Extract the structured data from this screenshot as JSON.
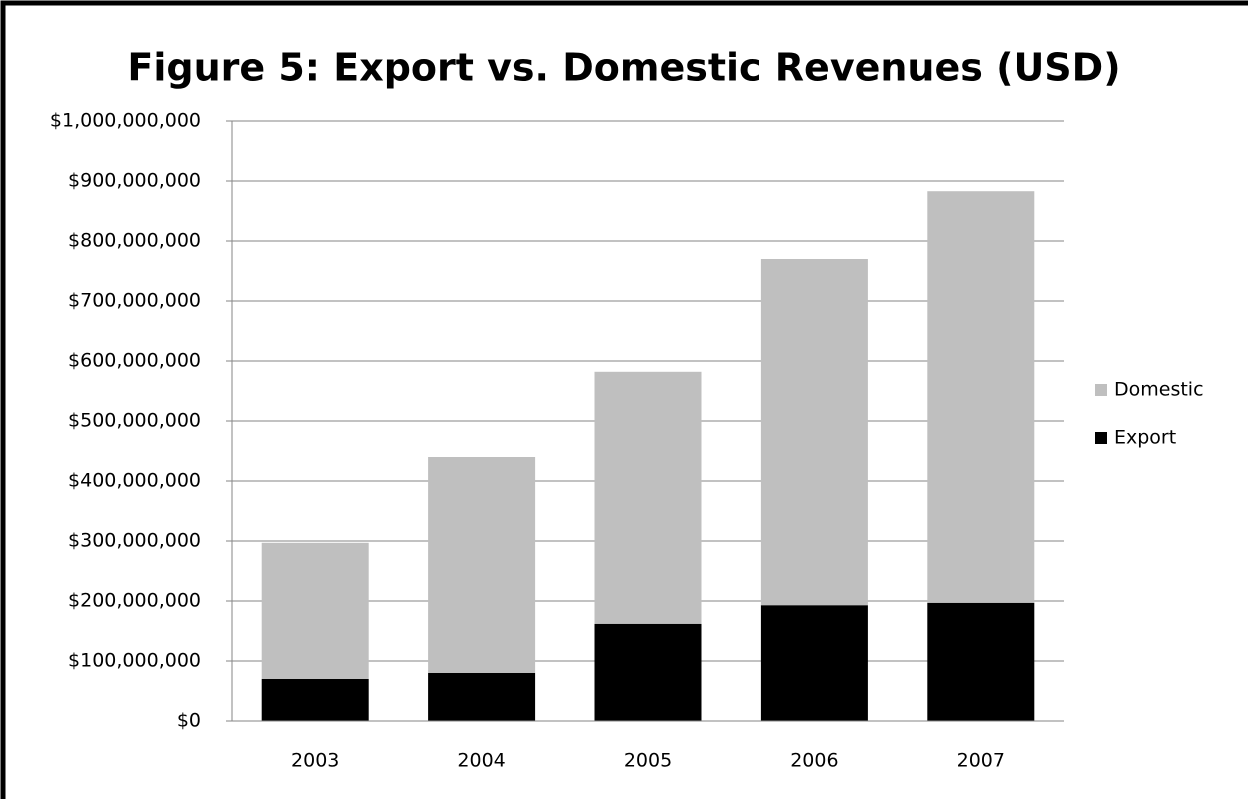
{
  "chart_data": {
    "type": "stacked_bar",
    "title": "Figure 5: Export vs. Domestic Revenues (USD)",
    "categories": [
      "2003",
      "2004",
      "2005",
      "2006",
      "2007"
    ],
    "series": [
      {
        "name": "Export",
        "color": "#000000",
        "values": [
          70000000,
          80000000,
          162000000,
          193000000,
          197000000
        ]
      },
      {
        "name": "Domestic",
        "color": "#bfbfbf",
        "values": [
          227000000,
          360000000,
          420000000,
          577000000,
          686000000
        ]
      }
    ],
    "ylim": [
      0,
      1000000000
    ],
    "yticks": [
      {
        "value": 0,
        "label": "$0"
      },
      {
        "value": 100000000,
        "label": "$100,000,000"
      },
      {
        "value": 200000000,
        "label": "$200,000,000"
      },
      {
        "value": 300000000,
        "label": "$300,000,000"
      },
      {
        "value": 400000000,
        "label": "$400,000,000"
      },
      {
        "value": 500000000,
        "label": "$500,000,000"
      },
      {
        "value": 600000000,
        "label": "$600,000,000"
      },
      {
        "value": 700000000,
        "label": "$700,000,000"
      },
      {
        "value": 800000000,
        "label": "$800,000,000"
      },
      {
        "value": 900000000,
        "label": "$900,000,000"
      },
      {
        "value": 1000000000,
        "label": "$1,000,000,000"
      }
    ],
    "grid": true,
    "legend": "right"
  }
}
